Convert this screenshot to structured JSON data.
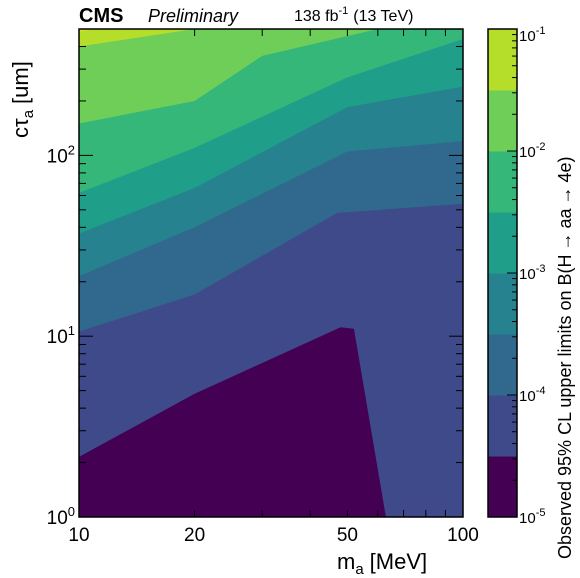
{
  "chart_data": {
    "type": "heatmap",
    "subtype": "filled-contour",
    "header": {
      "experiment": "CMS",
      "status": "Preliminary",
      "lumi_value": "138 fb",
      "lumi_exp": "-1",
      "energy": "(13 TeV)"
    },
    "x_axis": {
      "label_main": "m",
      "label_sub": "a",
      "label_unit": "[MeV]",
      "scale": "log",
      "range": [
        10,
        100
      ],
      "ticks": [
        {
          "value": 10,
          "label": "10"
        },
        {
          "value": 20,
          "label": "20"
        },
        {
          "value": 50,
          "label": "50"
        },
        {
          "value": 100,
          "label": "100"
        }
      ]
    },
    "y_axis": {
      "label_main": "cτ",
      "label_sub": "a",
      "label_unit": "[um]",
      "scale": "log",
      "range": [
        1,
        500
      ],
      "ticks": [
        {
          "value": 1,
          "base": "10",
          "exp": "0"
        },
        {
          "value": 10,
          "base": "10",
          "exp": "1"
        },
        {
          "value": 100,
          "base": "10",
          "exp": "2"
        }
      ]
    },
    "z_axis": {
      "label_prefix": "Observed 95% CL upper limits on B(H",
      "label_arrow1": "→",
      "label_mid": "aa",
      "label_arrow2": "→",
      "label_suffix": "4e)",
      "scale": "log",
      "range": [
        1e-05,
        0.1
      ],
      "ticks": [
        {
          "value": 1e-05,
          "base": "10",
          "exp": "-5"
        },
        {
          "value": 0.0001,
          "base": "10",
          "exp": "-4"
        },
        {
          "value": 0.001,
          "base": "10",
          "exp": "-3"
        },
        {
          "value": 0.01,
          "base": "10",
          "exp": "-2"
        },
        {
          "value": 0.1,
          "base": "10",
          "exp": "-1"
        }
      ],
      "bands": [
        {
          "lo": 1e-05,
          "hi": 3.16e-05,
          "color": "#440154"
        },
        {
          "lo": 3.16e-05,
          "hi": 0.0001,
          "color": "#3e4a89"
        },
        {
          "lo": 0.0001,
          "hi": 0.000316,
          "color": "#31688e"
        },
        {
          "lo": 0.000316,
          "hi": 0.001,
          "color": "#26828e"
        },
        {
          "lo": 0.001,
          "hi": 0.00316,
          "color": "#1f9e89"
        },
        {
          "lo": 0.00316,
          "hi": 0.01,
          "color": "#35b779"
        },
        {
          "lo": 0.01,
          "hi": 0.0316,
          "color": "#6ece58"
        },
        {
          "lo": 0.0316,
          "hi": 0.1,
          "color": "#b5de2b"
        },
        {
          "lo": 0.1,
          "hi": 0.316,
          "color": "#e0e324"
        }
      ]
    },
    "contours": [
      {
        "level": 3.16e-05,
        "points": [
          [
            10,
            2.15
          ],
          [
            20,
            4.8
          ],
          [
            48,
            11.2
          ],
          [
            52,
            11.0
          ],
          [
            63,
            1.0
          ]
        ]
      },
      {
        "level": 0.0001,
        "points": [
          [
            10,
            10.6
          ],
          [
            20,
            17.0
          ],
          [
            47,
            48.0
          ],
          [
            100,
            54.0
          ]
        ]
      },
      {
        "level": 0.000316,
        "points": [
          [
            10,
            21.5
          ],
          [
            20,
            40.0
          ],
          [
            50,
            105.0
          ],
          [
            100,
            120.0
          ]
        ]
      },
      {
        "level": 0.001,
        "points": [
          [
            10,
            37.0
          ],
          [
            20,
            66.0
          ],
          [
            50,
            185.0
          ],
          [
            100,
            240.0
          ]
        ]
      },
      {
        "level": 0.00316,
        "points": [
          [
            10,
            62.0
          ],
          [
            20,
            110.0
          ],
          [
            50,
            270.0
          ],
          [
            100,
            440.0
          ]
        ]
      },
      {
        "level": 0.01,
        "points": [
          [
            10,
            150.0
          ],
          [
            20,
            200.0
          ],
          [
            30,
            355.0
          ],
          [
            60,
            500.0
          ]
        ]
      },
      {
        "level": 0.0316,
        "points": [
          [
            10,
            400.0
          ],
          [
            20,
            500.0
          ]
        ]
      },
      {
        "level": 0.1,
        "points": [
          [
            10,
            485.0
          ],
          [
            11,
            500.0
          ]
        ]
      }
    ]
  }
}
